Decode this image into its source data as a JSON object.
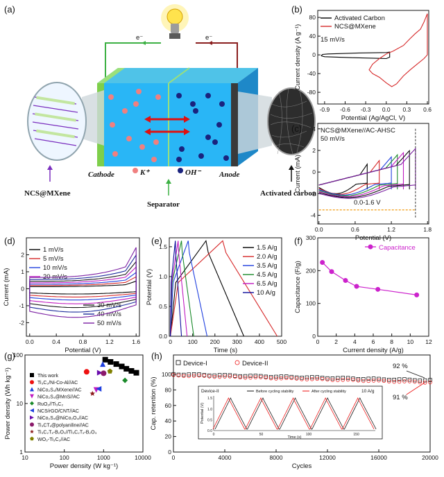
{
  "panel_labels": [
    "(a)",
    "(b)",
    "(c)",
    "(d)",
    "(e)",
    "(f)",
    "(g)",
    "(h)"
  ],
  "schematic": {
    "electron_left": "e⁻",
    "electron_right": "e⁻",
    "cathode": "Cathode",
    "anode": "Anode",
    "ion_pos": "K⁺",
    "ion_neg": "OH⁻",
    "separator": "Separator",
    "left_material": "NCS@MXene",
    "right_material": "Activated carbon"
  },
  "chart_data": [
    {
      "id": "b",
      "type": "line",
      "xlabel": "Potential (Ag/AgCl, V)",
      "ylabel": "Current density (A g⁻¹)",
      "xlim": [
        -1.0,
        0.62
      ],
      "ylim": [
        -105,
        95
      ],
      "xticks": [
        "-0.9",
        "-0.6",
        "-0.3",
        "0.0",
        "0.3",
        "0.6"
      ],
      "xtick_vals": [
        -0.9,
        -0.6,
        -0.3,
        0.0,
        0.3,
        0.6
      ],
      "yticks": [
        "-80",
        "-40",
        "0",
        "40",
        "80"
      ],
      "ytick_vals": [
        -80,
        -40,
        0,
        40,
        80
      ],
      "annotation": "15 mV/s",
      "series": [
        {
          "name": "Activated Carbon",
          "color": "#000000",
          "points": [
            [
              -0.95,
              -2
            ],
            [
              -0.9,
              -4
            ],
            [
              -0.5,
              -6
            ],
            [
              -0.1,
              -7.5
            ],
            [
              0.0,
              -8
            ],
            [
              0.05,
              -5
            ],
            [
              0.05,
              6
            ],
            [
              0.0,
              5
            ],
            [
              -0.4,
              4
            ],
            [
              -0.85,
              2
            ],
            [
              -0.93,
              1
            ],
            [
              -0.95,
              -2
            ]
          ]
        },
        {
          "name": "NCS@MXene",
          "color": "#d62728",
          "points": [
            [
              -0.2,
              -40
            ],
            [
              -0.1,
              -48
            ],
            [
              0.0,
              -60
            ],
            [
              0.08,
              -68
            ],
            [
              0.15,
              -62
            ],
            [
              0.25,
              -45
            ],
            [
              0.35,
              -32
            ],
            [
              0.45,
              -20
            ],
            [
              0.55,
              -8
            ],
            [
              0.6,
              0
            ],
            [
              0.6,
              88
            ],
            [
              0.55,
              70
            ],
            [
              0.5,
              55
            ],
            [
              0.42,
              45
            ],
            [
              0.35,
              35
            ],
            [
              0.25,
              20
            ],
            [
              0.1,
              8
            ],
            [
              0.0,
              2
            ],
            [
              -0.1,
              -8
            ],
            [
              -0.2,
              -20
            ],
            [
              -0.25,
              -32
            ],
            [
              -0.2,
              -40
            ]
          ]
        }
      ]
    },
    {
      "id": "c",
      "type": "line",
      "xlabel": "Potential (V)",
      "ylabel": "Current (mA)",
      "xlim": [
        -0.02,
        1.82
      ],
      "ylim": [
        -4.8,
        4.5
      ],
      "xticks": [
        "0.0",
        "0.6",
        "1.2",
        "1.8"
      ],
      "xtick_vals": [
        0,
        0.6,
        1.2,
        1.8
      ],
      "yticks": [
        "-4",
        "-2",
        "0",
        "2",
        "4"
      ],
      "ytick_vals": [
        -4,
        -2,
        0,
        2,
        4
      ],
      "title_lines": [
        "NCS@MXene//AC-AHSC",
        "50 mV/s"
      ],
      "window_label": "0.0-1.6 V",
      "series": [
        {
          "vmax": 0.8,
          "color": "#000000"
        },
        {
          "vmax": 1.0,
          "color": "#d62728"
        },
        {
          "vmax": 1.2,
          "color": "#1f3fdf"
        },
        {
          "vmax": 1.3,
          "color": "#1a8a2a"
        },
        {
          "vmax": 1.4,
          "color": "#c01ac0"
        },
        {
          "vmax": 1.5,
          "color": "#0a0a0a"
        },
        {
          "vmax": 1.6,
          "color": "#7b1fa2"
        }
      ]
    },
    {
      "id": "d",
      "type": "line",
      "xlabel": "Potential (V)",
      "ylabel": "Current (mA)",
      "xlim": [
        -0.05,
        1.65
      ],
      "ylim": [
        -2.8,
        3.0
      ],
      "xticks": [
        "0.0",
        "0.4",
        "0.8",
        "1.2",
        "1.6"
      ],
      "xtick_vals": [
        0,
        0.4,
        0.8,
        1.2,
        1.6
      ],
      "yticks": [
        "-2",
        "-1",
        "0",
        "1",
        "2"
      ],
      "ytick_vals": [
        -2,
        -1,
        0,
        1,
        2
      ],
      "series": [
        {
          "name": "1 mV/s",
          "color": "#000000",
          "scale": 0.35
        },
        {
          "name": "5 mV/s",
          "color": "#d62728",
          "scale": 0.55
        },
        {
          "name": "10 mV/s",
          "color": "#1f3fdf",
          "scale": 0.75
        },
        {
          "name": "20 mV/s",
          "color": "#c01ac0",
          "scale": 1.0
        },
        {
          "name": "30 mV/s",
          "color": "#1a1a1a",
          "scale": 1.25
        },
        {
          "name": "40 mV/s",
          "color": "#1a2a9a",
          "scale": 1.55
        },
        {
          "name": "50 mV/s",
          "color": "#7b1fa2",
          "scale": 1.9
        }
      ]
    },
    {
      "id": "e",
      "type": "line",
      "xlabel": "Time (s)",
      "ylabel": "Potential (V)",
      "xlim": [
        -5,
        500
      ],
      "ylim": [
        0,
        1.65
      ],
      "xticks": [
        "0",
        "100",
        "200",
        "300",
        "400",
        "500"
      ],
      "xtick_vals": [
        0,
        100,
        200,
        300,
        400,
        500
      ],
      "yticks": [
        "0.0",
        "0.5",
        "1.0",
        "1.5"
      ],
      "ytick_vals": [
        0,
        0.5,
        1.0,
        1.5
      ],
      "series": [
        {
          "name": "1.5 A/g",
          "color": "#000000",
          "t_charge": 160,
          "t_total": 330
        },
        {
          "name": "2.0 A/g",
          "color": "#d62728",
          "t_charge": 235,
          "t_total": 480
        },
        {
          "name": "3.5 A/g",
          "color": "#1f3fdf",
          "t_charge": 80,
          "t_total": 165
        },
        {
          "name": "4.5 A/g",
          "color": "#1a8a2a",
          "t_charge": 50,
          "t_total": 105
        },
        {
          "name": "6.5 A/g",
          "color": "#c01ac0",
          "t_charge": 35,
          "t_total": 75
        },
        {
          "name": "10  A/g",
          "color": "#0a0a9a",
          "t_charge": 22,
          "t_total": 50
        }
      ]
    },
    {
      "id": "f",
      "type": "line",
      "xlabel": "Current density (A/g)",
      "ylabel": "Capacitance (F/g)",
      "xlim": [
        0,
        12
      ],
      "ylim": [
        0,
        300
      ],
      "xticks": [
        "0",
        "2",
        "4",
        "6",
        "8",
        "10",
        "12"
      ],
      "xtick_vals": [
        0,
        2,
        4,
        6,
        8,
        10,
        12
      ],
      "yticks": [
        "0",
        "100",
        "200",
        "300"
      ],
      "ytick_vals": [
        0,
        100,
        200,
        300
      ],
      "series": [
        {
          "name": "Capacitance",
          "color": "#cc22cc",
          "x": [
            0.5,
            1.5,
            3.0,
            4.2,
            6.5,
            10.7
          ],
          "y": [
            225,
            197,
            170,
            152,
            143,
            126
          ]
        }
      ]
    },
    {
      "id": "g",
      "type": "scatter",
      "log": true,
      "xlabel": "Power density (W kg⁻¹)",
      "ylabel": "Power density (Wh kg⁻¹)",
      "xlim": [
        10,
        10000
      ],
      "ylim": [
        1,
        100
      ],
      "xticks": [
        "10",
        "100",
        "1000",
        "10000"
      ],
      "xtick_vals": [
        10,
        100,
        1000,
        10000
      ],
      "yticks": [
        "1",
        "10",
        "100"
      ],
      "ytick_vals": [
        1,
        10,
        100
      ],
      "series": [
        {
          "name": "This work",
          "color": "#000000",
          "marker": "square",
          "x": [
            1100,
            1500,
            2100,
            2900,
            3800,
            5100,
            6800
          ],
          "y": [
            80,
            72,
            65,
            58,
            52,
            47,
            43
          ]
        },
        {
          "name": "Ti₃C₂/Ni-Co-Al//AC",
          "color": "#ee1111",
          "marker": "circle",
          "x": [
            370
          ],
          "y": [
            45
          ]
        },
        {
          "name": "NiCo₂S₄/MXene//AC",
          "color": "#1f3fdf",
          "marker": "triangle",
          "x": [
            950
          ],
          "y": [
            65
          ]
        },
        {
          "name": "NiCo₂S₄@MnS//AC",
          "color": "#c01ac0",
          "marker": "triangle-down",
          "x": [
            650
          ],
          "y": [
            19
          ]
        },
        {
          "name": "RuO₂//Ti₃C₂",
          "color": "#1a8a2a",
          "marker": "diamond",
          "x": [
            3500
          ],
          "y": [
            30
          ]
        },
        {
          "name": "NCS/rGO/CNT//AC",
          "color": "#1f3fdf",
          "marker": "triangle-left",
          "x": [
            750
          ],
          "y": [
            20
          ]
        },
        {
          "name": "NiCo₂S₄@NiCo₂O₄//AC",
          "color": "#6a0dad",
          "marker": "triangle-right",
          "x": [
            800
          ],
          "y": [
            43
          ]
        },
        {
          "name": "Ti₃CTₓ@polyaniline//AC",
          "color": "#8b1a6a",
          "marker": "circle",
          "x": [
            1000
          ],
          "y": [
            42
          ]
        },
        {
          "name": "Ti₃C₂Tₓ-B₂O₃//Ti₃C₂Tₓ-B₂O₃",
          "color": "#8b1a1a",
          "marker": "star",
          "x": [
            520
          ],
          "y": [
            16
          ]
        },
        {
          "name": "WO₃-Ti₃C₂//AC",
          "color": "#808000",
          "marker": "pentagon",
          "x": [
            1450
          ],
          "y": [
            46
          ]
        }
      ]
    },
    {
      "id": "h",
      "type": "scatter",
      "xlabel": "Cycles",
      "ylabel": "Cap. retention (%)",
      "xlim": [
        0,
        20000
      ],
      "ylim": [
        0,
        125
      ],
      "xticks": [
        "0",
        "4000",
        "8000",
        "12000",
        "16000",
        "20000"
      ],
      "xtick_vals": [
        0,
        4000,
        8000,
        12000,
        16000,
        20000
      ],
      "yticks": [
        "0",
        "20",
        "40",
        "60",
        "80",
        "100"
      ],
      "ytick_vals": [
        0,
        20,
        40,
        60,
        80,
        100
      ],
      "series": [
        {
          "name": "Device-I",
          "color": "#000000",
          "marker": "square",
          "start": 100,
          "end": 92
        },
        {
          "name": "Device-II",
          "color": "#ee1111",
          "marker": "circle",
          "start": 100,
          "end": 91
        }
      ],
      "annotations": [
        "92 %",
        "91 %"
      ],
      "inset": {
        "label": "Device-II",
        "legend": [
          "Before cycling stability",
          "After cycling stability"
        ],
        "rate": "10 A/g",
        "xlabel": "Time (s)",
        "ylabel": "Potential (V)",
        "xticks": [
          "0",
          "50",
          "100",
          "150"
        ],
        "yticks": [
          "0.0",
          "0.5",
          "1.0",
          "1.5"
        ]
      }
    }
  ]
}
